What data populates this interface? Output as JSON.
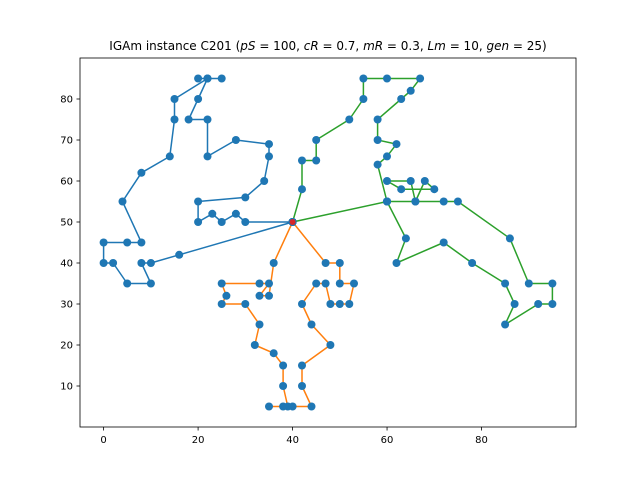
{
  "chart_data": {
    "type": "line",
    "title": "IGAm instance C201 (pS = 100, cR = 0.7, mR = 0.3, Lm = 10, gen = 25)",
    "title_parts": {
      "prefix": "IGAm instance C201 (",
      "params": [
        {
          "name": "pS",
          "value": "100"
        },
        {
          "name": "cR",
          "value": "0.7"
        },
        {
          "name": "mR",
          "value": "0.3"
        },
        {
          "name": "Lm",
          "value": "10"
        },
        {
          "name": "gen",
          "value": "25"
        }
      ],
      "suffix": ")"
    },
    "xlabel": "",
    "ylabel": "",
    "xlim": [
      -5,
      100
    ],
    "ylim": [
      0,
      90
    ],
    "x_ticks": [
      0,
      20,
      40,
      60,
      80
    ],
    "y_ticks": [
      10,
      20,
      30,
      40,
      50,
      60,
      70,
      80
    ],
    "grid": false,
    "depot": [
      40,
      50
    ],
    "marker_color": "#1f77b4",
    "series": [
      {
        "color": "#1f77b4",
        "points": [
          [
            40,
            50
          ],
          [
            30,
            50
          ],
          [
            28,
            52
          ],
          [
            25,
            50
          ],
          [
            23,
            52
          ],
          [
            20,
            50
          ],
          [
            20,
            55
          ],
          [
            30,
            56
          ],
          [
            34,
            60
          ],
          [
            35,
            66
          ],
          [
            35,
            69
          ],
          [
            28,
            70
          ],
          [
            22,
            66
          ],
          [
            22,
            75
          ],
          [
            18,
            75
          ],
          [
            20,
            80
          ],
          [
            22,
            85
          ],
          [
            20,
            85
          ],
          [
            25,
            85
          ],
          [
            22,
            85
          ],
          [
            15,
            80
          ],
          [
            15,
            75
          ],
          [
            14,
            66
          ],
          [
            8,
            62
          ],
          [
            4,
            55
          ],
          [
            8,
            45
          ],
          [
            5,
            45
          ],
          [
            0,
            45
          ],
          [
            0,
            40
          ],
          [
            2,
            40
          ],
          [
            5,
            35
          ],
          [
            10,
            35
          ],
          [
            8,
            40
          ],
          [
            10,
            40
          ],
          [
            16,
            42
          ],
          [
            40,
            50
          ]
        ]
      },
      {
        "color": "#ff7f0e",
        "points": [
          [
            40,
            50
          ],
          [
            36,
            40
          ],
          [
            35,
            32
          ],
          [
            33,
            32
          ],
          [
            35,
            35
          ],
          [
            33,
            35
          ],
          [
            25,
            35
          ],
          [
            26,
            32
          ],
          [
            25,
            30
          ],
          [
            30,
            30
          ],
          [
            33,
            25
          ],
          [
            32,
            20
          ],
          [
            36,
            18
          ],
          [
            38,
            15
          ],
          [
            38,
            10
          ],
          [
            39,
            5
          ],
          [
            35,
            5
          ],
          [
            38,
            5
          ],
          [
            40,
            5
          ],
          [
            44,
            5
          ],
          [
            42,
            10
          ],
          [
            42,
            15
          ],
          [
            48,
            20
          ],
          [
            44,
            25
          ],
          [
            42,
            30
          ],
          [
            45,
            35
          ],
          [
            47,
            35
          ],
          [
            48,
            30
          ],
          [
            50,
            30
          ],
          [
            52,
            30
          ],
          [
            53,
            35
          ],
          [
            50,
            35
          ],
          [
            50,
            40
          ],
          [
            47,
            40
          ],
          [
            40,
            50
          ]
        ]
      },
      {
        "color": "#2ca02c",
        "points": [
          [
            40,
            50
          ],
          [
            60,
            55
          ],
          [
            58,
            64
          ],
          [
            60,
            66
          ],
          [
            62,
            69
          ],
          [
            58,
            70
          ],
          [
            58,
            75
          ],
          [
            63,
            80
          ],
          [
            65,
            82
          ],
          [
            67,
            85
          ],
          [
            60,
            85
          ],
          [
            55,
            85
          ],
          [
            55,
            80
          ],
          [
            52,
            75
          ],
          [
            45,
            70
          ],
          [
            45,
            65
          ],
          [
            42,
            65
          ],
          [
            42,
            58
          ],
          [
            40,
            50
          ],
          [
            60,
            55
          ],
          [
            66,
            55
          ],
          [
            65,
            60
          ],
          [
            60,
            60
          ],
          [
            63,
            58
          ],
          [
            70,
            58
          ],
          [
            68,
            60
          ],
          [
            66,
            55
          ],
          [
            72,
            55
          ],
          [
            75,
            55
          ],
          [
            86,
            46
          ],
          [
            90,
            35
          ],
          [
            95,
            35
          ],
          [
            95,
            30
          ],
          [
            92,
            30
          ],
          [
            85,
            25
          ],
          [
            87,
            30
          ],
          [
            85,
            35
          ],
          [
            78,
            40
          ],
          [
            72,
            45
          ],
          [
            62,
            40
          ],
          [
            64,
            46
          ],
          [
            60,
            55
          ]
        ]
      }
    ]
  }
}
